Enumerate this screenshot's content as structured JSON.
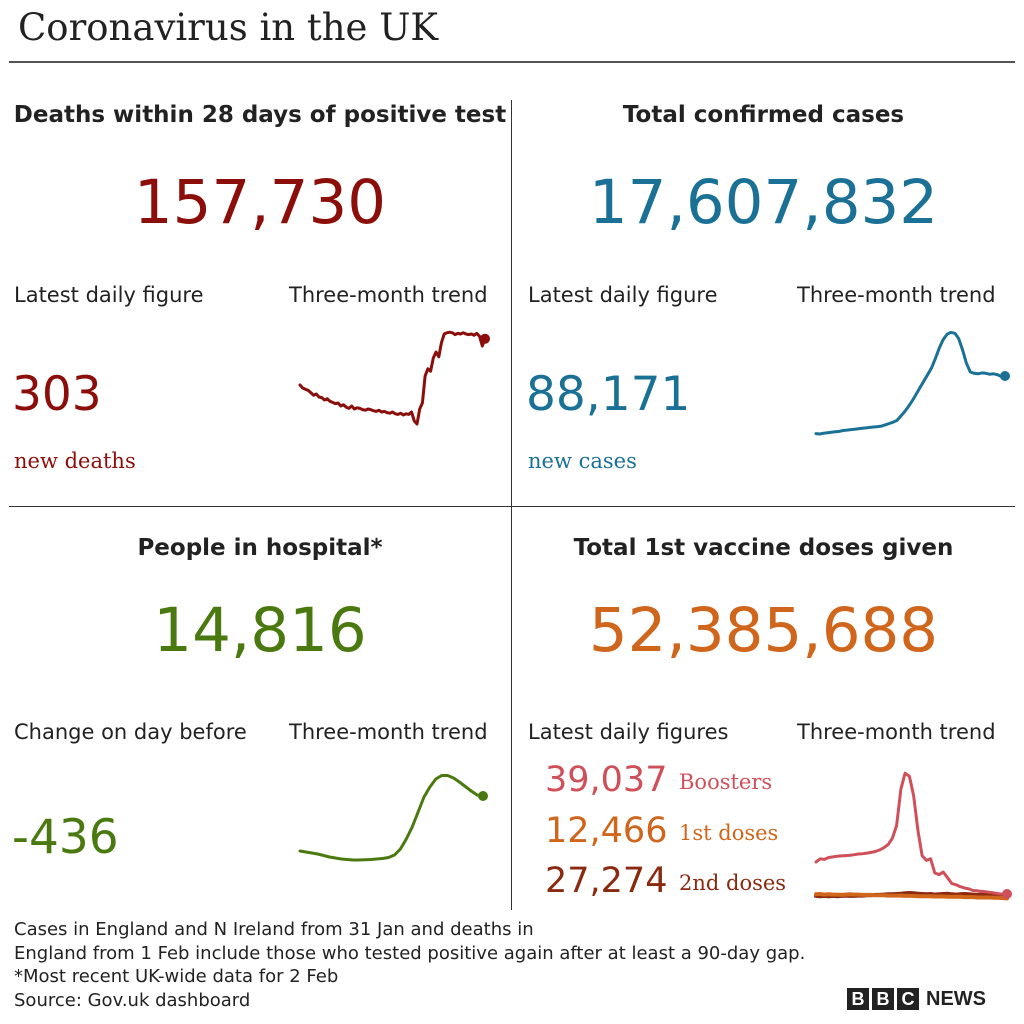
{
  "title": "Coronavirus in the UK",
  "colors": {
    "deaths": "#8b0e0a",
    "cases": "#1b7195",
    "hospital": "#4a7a0f",
    "vaccine": "#d0651c",
    "boosters": "#d0505a",
    "first_doses": "#d0651c",
    "second_doses": "#8a2a10"
  },
  "panels": {
    "deaths": {
      "heading": "Deaths within 28 days of positive test",
      "total": "157,730",
      "left_label": "Latest daily figure",
      "trend_label": "Three-month trend",
      "daily_value": "303",
      "daily_caption": "new deaths"
    },
    "cases": {
      "heading": "Total confirmed cases",
      "total": "17,607,832",
      "left_label": "Latest daily figure",
      "trend_label": "Three-month trend",
      "daily_value": "88,171",
      "daily_caption": "new cases"
    },
    "hospital": {
      "heading": "People in hospital*",
      "total": "14,816",
      "left_label": "Change on day before",
      "trend_label": "Three-month trend",
      "daily_value": "-436"
    },
    "vaccine": {
      "heading": "Total 1st vaccine doses given",
      "total": "52,385,688",
      "left_label": "Latest daily figures",
      "trend_label": "Three-month trend",
      "doses": [
        {
          "value": "39,037",
          "label": "Boosters"
        },
        {
          "value": "12,466",
          "label": "1st doses"
        },
        {
          "value": "27,274",
          "label": "2nd doses"
        }
      ]
    }
  },
  "footer": {
    "line1": "Cases in England and N Ireland from 31 Jan and deaths in",
    "line2": "England from 1 Feb include those who tested positive again after at least a 90-day gap.",
    "line3": "*Most recent UK-wide data for 2 Feb",
    "line4": "Source: Gov.uk dashboard"
  },
  "brand": {
    "b1": "B",
    "b2": "B",
    "b3": "C",
    "news": "NEWS"
  },
  "chart_data": [
    {
      "type": "line",
      "name": "deaths-trend",
      "y": [
        245,
        240,
        238,
        236,
        232,
        228,
        230,
        225,
        224,
        220,
        222,
        218,
        216,
        214,
        215,
        210,
        212,
        208,
        206,
        210,
        205,
        207,
        206,
        204,
        203,
        205,
        204,
        202,
        201,
        203,
        200,
        201,
        199,
        198,
        200,
        197,
        196,
        198,
        195,
        197,
        196,
        200,
        185,
        180,
        205,
        215,
        260,
        272,
        268,
        290,
        300,
        292,
        316,
        330,
        332,
        333,
        332,
        329,
        331,
        330,
        332,
        330,
        329,
        330,
        328,
        331,
        326,
        310,
        322
      ],
      "ylim": [
        170,
        340
      ]
    },
    {
      "type": "line",
      "name": "cases-trend",
      "y": [
        10,
        9,
        11,
        12,
        13,
        14,
        15,
        17,
        18,
        19,
        20,
        21,
        22,
        23,
        24,
        25,
        26,
        27,
        30,
        33,
        36,
        40,
        50,
        60,
        72,
        85,
        100,
        115,
        130,
        145,
        160,
        182,
        205,
        224,
        236,
        240,
        238,
        226,
        200,
        170,
        150,
        147,
        146,
        148,
        147,
        145,
        146,
        144,
        140,
        141
      ],
      "ylim": [
        0,
        250
      ]
    },
    {
      "type": "line",
      "name": "hospital-trend",
      "y": [
        6.9,
        6.8,
        6.7,
        6.6,
        6.45,
        6.3,
        6.2,
        6.1,
        6.05,
        6.0,
        6.0,
        6.02,
        6.05,
        6.1,
        6.15,
        6.25,
        6.5,
        7.1,
        8.1,
        9.3,
        10.8,
        12.3,
        13.3,
        14.1,
        14.45,
        14.45,
        14.2,
        13.8,
        13.35,
        12.9,
        12.5,
        12.4
      ],
      "ylim": [
        4,
        16
      ]
    },
    {
      "type": "line",
      "name": "vaccine-trend",
      "series": [
        {
          "values": [
            120,
            130,
            128,
            134,
            136,
            138,
            139,
            140,
            141,
            143,
            145,
            146,
            148,
            150,
            153,
            158,
            165,
            175,
            195,
            235,
            350,
            400,
            390,
            330,
            220,
            140,
            125,
            130,
            85,
            80,
            88,
            70,
            52,
            48,
            42,
            38,
            35,
            30,
            29,
            27,
            26,
            24,
            22,
            20,
            18,
            19
          ]
        },
        {
          "values": [
            18,
            19,
            17,
            18,
            17,
            17,
            16,
            17,
            18,
            17,
            17,
            16,
            16,
            16,
            15,
            15,
            15,
            14,
            14,
            14,
            14,
            13,
            13,
            13,
            12,
            12,
            12,
            12,
            11,
            11,
            11,
            10,
            10,
            10,
            10,
            9,
            9,
            9,
            8,
            8,
            8,
            8,
            7,
            7,
            6,
            5
          ]
        },
        {
          "values": [
            13,
            12,
            13,
            12,
            13,
            12,
            13,
            14,
            13,
            13,
            14,
            14,
            15,
            15,
            16,
            16,
            17,
            18,
            18,
            19,
            20,
            21,
            22,
            21,
            20,
            19,
            18,
            19,
            17,
            18,
            19,
            20,
            18,
            17,
            18,
            19,
            18,
            17,
            16,
            17,
            16,
            17,
            15,
            16,
            15,
            16
          ]
        }
      ],
      "ylim": [
        0,
        410
      ]
    }
  ]
}
